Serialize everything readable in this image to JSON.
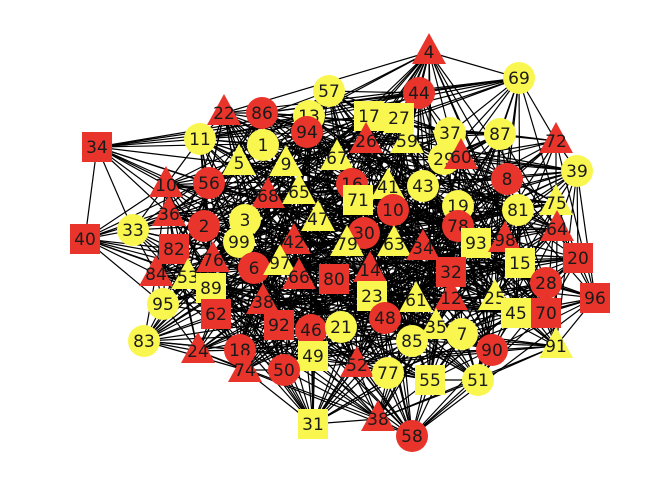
{
  "colors": {
    "red": "#e8342a",
    "yellow": "#f9f74f",
    "edge": "#000000",
    "background": "#ffffff"
  },
  "nodes": [
    {
      "id": "4",
      "color": "red",
      "shape": "triangle"
    },
    {
      "id": "69",
      "color": "yellow",
      "shape": "circle"
    },
    {
      "id": "44",
      "color": "red",
      "shape": "circle"
    },
    {
      "id": "57",
      "color": "yellow",
      "shape": "circle"
    },
    {
      "id": "22",
      "color": "red",
      "shape": "triangle"
    },
    {
      "id": "86",
      "color": "red",
      "shape": "circle"
    },
    {
      "id": "13",
      "color": "yellow",
      "shape": "circle"
    },
    {
      "id": "17",
      "color": "yellow",
      "shape": "square"
    },
    {
      "id": "27",
      "color": "yellow",
      "shape": "square"
    },
    {
      "id": "87",
      "color": "yellow",
      "shape": "circle"
    },
    {
      "id": "72",
      "color": "red",
      "shape": "triangle"
    },
    {
      "id": "34",
      "color": "red",
      "shape": "square"
    },
    {
      "id": "11",
      "color": "yellow",
      "shape": "circle"
    },
    {
      "id": "94",
      "color": "red",
      "shape": "circle"
    },
    {
      "id": "26",
      "color": "red",
      "shape": "triangle"
    },
    {
      "id": "59",
      "color": "yellow",
      "shape": "triangle"
    },
    {
      "id": "37",
      "color": "yellow",
      "shape": "circle"
    },
    {
      "id": "1",
      "color": "yellow",
      "shape": "circle"
    },
    {
      "id": "29",
      "color": "yellow",
      "shape": "circle"
    },
    {
      "id": "60",
      "color": "red",
      "shape": "triangle"
    },
    {
      "id": "39",
      "color": "yellow",
      "shape": "circle"
    },
    {
      "id": "5",
      "color": "yellow",
      "shape": "triangle"
    },
    {
      "id": "9",
      "color": "yellow",
      "shape": "triangle"
    },
    {
      "id": "67",
      "color": "yellow",
      "shape": "triangle"
    },
    {
      "id": "8",
      "color": "red",
      "shape": "circle"
    },
    {
      "id": "10",
      "color": "red",
      "shape": "triangle"
    },
    {
      "id": "56",
      "color": "red",
      "shape": "circle"
    },
    {
      "id": "68",
      "color": "red",
      "shape": "triangle"
    },
    {
      "id": "65",
      "color": "yellow",
      "shape": "triangle"
    },
    {
      "id": "16",
      "color": "red",
      "shape": "circle"
    },
    {
      "id": "41",
      "color": "yellow",
      "shape": "triangle"
    },
    {
      "id": "43",
      "color": "yellow",
      "shape": "circle"
    },
    {
      "id": "75",
      "color": "yellow",
      "shape": "triangle"
    },
    {
      "id": "71",
      "color": "yellow",
      "shape": "square"
    },
    {
      "id": "81",
      "color": "yellow",
      "shape": "circle"
    },
    {
      "id": "36",
      "color": "red",
      "shape": "triangle"
    },
    {
      "id": "19",
      "color": "yellow",
      "shape": "circle"
    },
    {
      "id": "33",
      "color": "yellow",
      "shape": "circle"
    },
    {
      "id": "2",
      "color": "red",
      "shape": "circle"
    },
    {
      "id": "3",
      "color": "yellow",
      "shape": "circle"
    },
    {
      "id": "47",
      "color": "yellow",
      "shape": "triangle"
    },
    {
      "id": "10b",
      "label": "10",
      "color": "red",
      "shape": "circle"
    },
    {
      "id": "78",
      "color": "red",
      "shape": "circle"
    },
    {
      "id": "64",
      "color": "red",
      "shape": "triangle"
    },
    {
      "id": "40",
      "color": "red",
      "shape": "square"
    },
    {
      "id": "99",
      "color": "yellow",
      "shape": "circle"
    },
    {
      "id": "30",
      "color": "red",
      "shape": "circle"
    },
    {
      "id": "42",
      "color": "red",
      "shape": "triangle"
    },
    {
      "id": "79",
      "color": "yellow",
      "shape": "triangle"
    },
    {
      "id": "63",
      "color": "yellow",
      "shape": "triangle"
    },
    {
      "id": "34b",
      "label": "34",
      "color": "red",
      "shape": "triangle"
    },
    {
      "id": "93",
      "color": "yellow",
      "shape": "square"
    },
    {
      "id": "98",
      "color": "red",
      "shape": "triangle"
    },
    {
      "id": "82",
      "color": "red",
      "shape": "square"
    },
    {
      "id": "76",
      "color": "red",
      "shape": "triangle"
    },
    {
      "id": "6",
      "color": "red",
      "shape": "circle"
    },
    {
      "id": "97",
      "color": "yellow",
      "shape": "triangle"
    },
    {
      "id": "15",
      "color": "yellow",
      "shape": "square"
    },
    {
      "id": "20",
      "color": "red",
      "shape": "square"
    },
    {
      "id": "84",
      "color": "red",
      "shape": "triangle"
    },
    {
      "id": "53",
      "color": "yellow",
      "shape": "triangle"
    },
    {
      "id": "89",
      "color": "yellow",
      "shape": "square"
    },
    {
      "id": "66",
      "color": "red",
      "shape": "triangle"
    },
    {
      "id": "80",
      "color": "red",
      "shape": "square"
    },
    {
      "id": "14",
      "color": "red",
      "shape": "triangle"
    },
    {
      "id": "32",
      "color": "red",
      "shape": "square"
    },
    {
      "id": "28",
      "color": "red",
      "shape": "circle"
    },
    {
      "id": "96",
      "color": "red",
      "shape": "square"
    },
    {
      "id": "95",
      "color": "yellow",
      "shape": "circle"
    },
    {
      "id": "62",
      "color": "red",
      "shape": "square"
    },
    {
      "id": "38",
      "color": "red",
      "shape": "triangle"
    },
    {
      "id": "23",
      "color": "yellow",
      "shape": "square"
    },
    {
      "id": "61",
      "color": "yellow",
      "shape": "triangle"
    },
    {
      "id": "12",
      "color": "red",
      "shape": "triangle"
    },
    {
      "id": "25",
      "color": "yellow",
      "shape": "triangle"
    },
    {
      "id": "45",
      "color": "yellow",
      "shape": "square"
    },
    {
      "id": "70",
      "color": "red",
      "shape": "square"
    },
    {
      "id": "83",
      "color": "yellow",
      "shape": "circle"
    },
    {
      "id": "92",
      "color": "red",
      "shape": "square"
    },
    {
      "id": "46",
      "color": "red",
      "shape": "circle"
    },
    {
      "id": "21",
      "color": "yellow",
      "shape": "circle"
    },
    {
      "id": "48",
      "color": "red",
      "shape": "circle"
    },
    {
      "id": "35",
      "color": "yellow",
      "shape": "triangle"
    },
    {
      "id": "7",
      "color": "yellow",
      "shape": "circle"
    },
    {
      "id": "24",
      "color": "red",
      "shape": "triangle"
    },
    {
      "id": "18",
      "color": "red",
      "shape": "circle"
    },
    {
      "id": "85",
      "color": "yellow",
      "shape": "circle"
    },
    {
      "id": "90",
      "color": "red",
      "shape": "circle"
    },
    {
      "id": "91",
      "color": "yellow",
      "shape": "triangle"
    },
    {
      "id": "49",
      "color": "yellow",
      "shape": "square"
    },
    {
      "id": "74",
      "color": "red",
      "shape": "triangle"
    },
    {
      "id": "50",
      "color": "red",
      "shape": "circle"
    },
    {
      "id": "52",
      "color": "red",
      "shape": "triangle"
    },
    {
      "id": "77",
      "color": "yellow",
      "shape": "circle"
    },
    {
      "id": "55",
      "color": "yellow",
      "shape": "square"
    },
    {
      "id": "51",
      "color": "yellow",
      "shape": "circle"
    },
    {
      "id": "31",
      "color": "yellow",
      "shape": "square"
    },
    {
      "id": "58",
      "color": "red",
      "shape": "circle"
    },
    {
      "id": "38b",
      "label": "38",
      "color": "red",
      "shape": "triangle"
    }
  ]
}
